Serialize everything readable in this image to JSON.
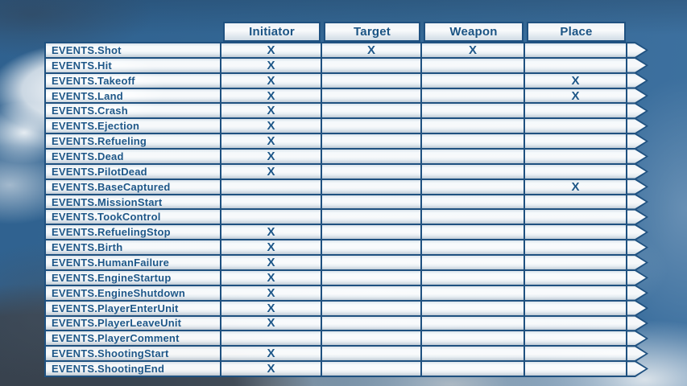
{
  "chart_data": {
    "type": "table",
    "title": "",
    "columns": [
      "Initiator",
      "Target",
      "Weapon",
      "Place"
    ],
    "mark_symbol": "X",
    "rows": [
      {
        "label": "EVENTS.Shot",
        "cells": [
          "X",
          "X",
          "X",
          ""
        ]
      },
      {
        "label": "EVENTS.Hit",
        "cells": [
          "X",
          "",
          "",
          ""
        ]
      },
      {
        "label": "EVENTS.Takeoff",
        "cells": [
          "X",
          "",
          "",
          "X"
        ]
      },
      {
        "label": "EVENTS.Land",
        "cells": [
          "X",
          "",
          "",
          "X"
        ]
      },
      {
        "label": "EVENTS.Crash",
        "cells": [
          "X",
          "",
          "",
          ""
        ]
      },
      {
        "label": "EVENTS.Ejection",
        "cells": [
          "X",
          "",
          "",
          ""
        ]
      },
      {
        "label": "EVENTS.Refueling",
        "cells": [
          "X",
          "",
          "",
          ""
        ]
      },
      {
        "label": "EVENTS.Dead",
        "cells": [
          "X",
          "",
          "",
          ""
        ]
      },
      {
        "label": "EVENTS.PilotDead",
        "cells": [
          "X",
          "",
          "",
          ""
        ]
      },
      {
        "label": "EVENTS.BaseCaptured",
        "cells": [
          "",
          "",
          "",
          "X"
        ]
      },
      {
        "label": "EVENTS.MissionStart",
        "cells": [
          "",
          "",
          "",
          ""
        ]
      },
      {
        "label": "EVENTS.TookControl",
        "cells": [
          "",
          "",
          "",
          ""
        ]
      },
      {
        "label": "EVENTS.RefuelingStop",
        "cells": [
          "X",
          "",
          "",
          ""
        ]
      },
      {
        "label": "EVENTS.Birth",
        "cells": [
          "X",
          "",
          "",
          ""
        ]
      },
      {
        "label": "EVENTS.HumanFailure",
        "cells": [
          "X",
          "",
          "",
          ""
        ]
      },
      {
        "label": "EVENTS.EngineStartup",
        "cells": [
          "X",
          "",
          "",
          ""
        ]
      },
      {
        "label": "EVENTS.EngineShutdown",
        "cells": [
          "X",
          "",
          "",
          ""
        ]
      },
      {
        "label": "EVENTS.PlayerEnterUnit",
        "cells": [
          "X",
          "",
          "",
          ""
        ]
      },
      {
        "label": "EVENTS.PlayerLeaveUnit",
        "cells": [
          "X",
          "",
          "",
          ""
        ]
      },
      {
        "label": "EVENTS.PlayerComment",
        "cells": [
          "",
          "",
          "",
          ""
        ]
      },
      {
        "label": "EVENTS.ShootingStart",
        "cells": [
          "X",
          "",
          "",
          ""
        ]
      },
      {
        "label": "EVENTS.ShootingEnd",
        "cells": [
          "X",
          "",
          "",
          ""
        ]
      }
    ]
  },
  "colors": {
    "border": "#1f5180",
    "text": "#1e5788",
    "header_text": "#1b5484",
    "sky": "#356996"
  }
}
